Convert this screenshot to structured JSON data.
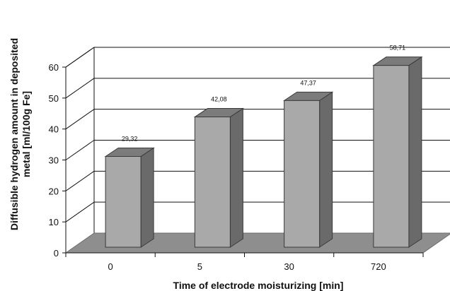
{
  "chart_data": {
    "type": "bar",
    "style": "3d",
    "categories": [
      "0",
      "5",
      "30",
      "720"
    ],
    "values": [
      29.32,
      42.08,
      47.37,
      58.71
    ],
    "data_labels": [
      "29,32",
      "42,08",
      "47,37",
      "58,71"
    ],
    "xlabel": "Time of electrode moisturizing [min]",
    "ylabel_lines": [
      "Diffusible hydrogen amount in deposited",
      "metal [ml/100g Fe]"
    ],
    "ylim": [
      0,
      60
    ],
    "yticks": [
      "0",
      "10",
      "20",
      "30",
      "40",
      "50",
      "60"
    ],
    "grid": true,
    "legend": "none",
    "colors": {
      "bar_front": "#a9a9a9",
      "bar_top": "#7b7b7b",
      "bar_side": "#6a6a6a",
      "floor": "#8e8e8e",
      "grid": "#111111"
    }
  }
}
